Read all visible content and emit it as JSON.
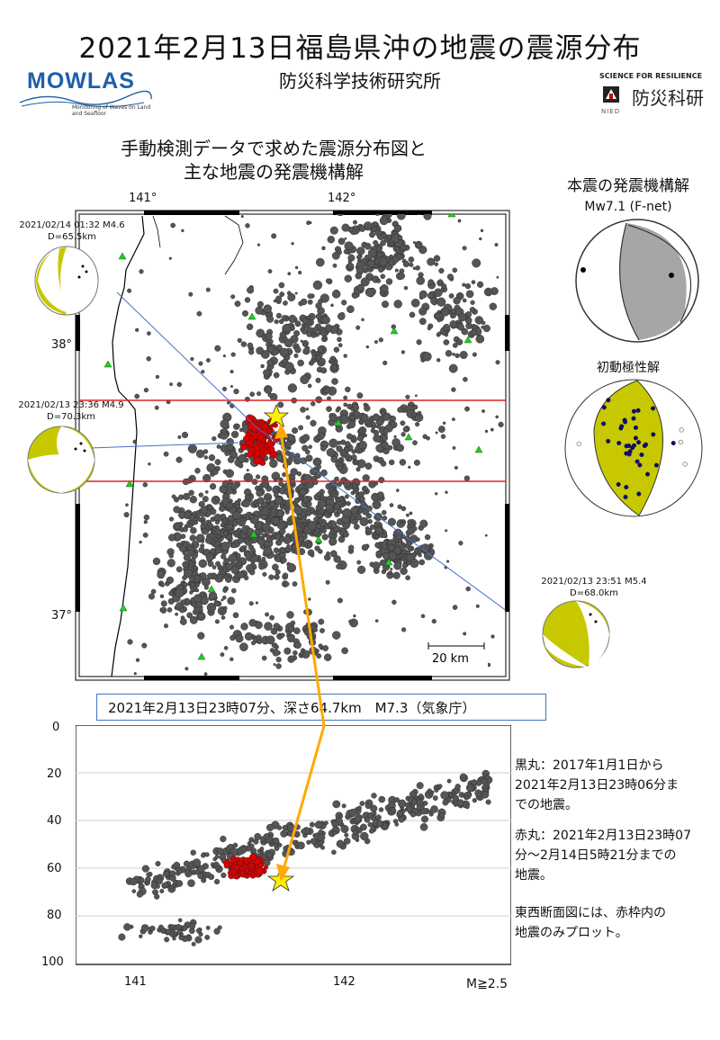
{
  "header": {
    "title": "2021年2月13日福島県沖の地震の震源分布",
    "institute": "防災科学技術研究所",
    "mowlas_logo": "MOWLAS",
    "mowlas_sub": "Monitoring of Waves on Land and Seafloor",
    "nied_tagline": "SCIENCE FOR RESILIENCE",
    "nied_name": "防災科研",
    "nied_abbr": "NIED"
  },
  "map": {
    "caption_line1": "手動検測データで求めた震源分布図と",
    "caption_line2": "主な地震の発震機構解",
    "lon_ticks": [
      "141°",
      "142°"
    ],
    "lat_ticks": [
      "38°",
      "37°"
    ],
    "scale_label": "20 km"
  },
  "beachballs": [
    {
      "date": "2021/02/14 01:32 M4.6",
      "depth": "D=65.5km"
    },
    {
      "date": "2021/02/13 23:36 M4.9",
      "depth": "D=70.3km"
    },
    {
      "date": "2021/02/13 23:51 M5.4",
      "depth": "D=68.0km"
    }
  ],
  "mainshock_mechanism": {
    "caption": "本震の発震機構解",
    "mw_label": "Mw7.1 (F-net)",
    "first_motion_caption": "初動極性解"
  },
  "info_box": "2021年2月13日23時07分、深さ64.7km　M7.3（気象庁）",
  "section": {
    "depth_ticks": [
      "0",
      "20",
      "40",
      "60",
      "80",
      "100"
    ],
    "lon_ticks": [
      "141",
      "142"
    ],
    "magnitude_note": "M≧2.5"
  },
  "notes": {
    "black_line1": "黒丸：2017年1月1日から",
    "black_line2": "2021年2月13日23時06分ま",
    "black_line3": "での地震。",
    "red_line1": "赤丸：2021年2月13日23時07",
    "red_line2": "分～2月14日5時21分までの",
    "red_line3": "地震。",
    "ew_line1": "東西断面図には、赤枠内の",
    "ew_line2": "地震のみプロット。"
  },
  "colors": {
    "quake_black": "#555555",
    "quake_red": "#dd0000",
    "station_green": "#22cc22",
    "star_yellow": "#ffee00",
    "beachball_yellow": "#cccc00",
    "arrow_orange": "#ffaa00",
    "frame_red": "#dd2222"
  }
}
